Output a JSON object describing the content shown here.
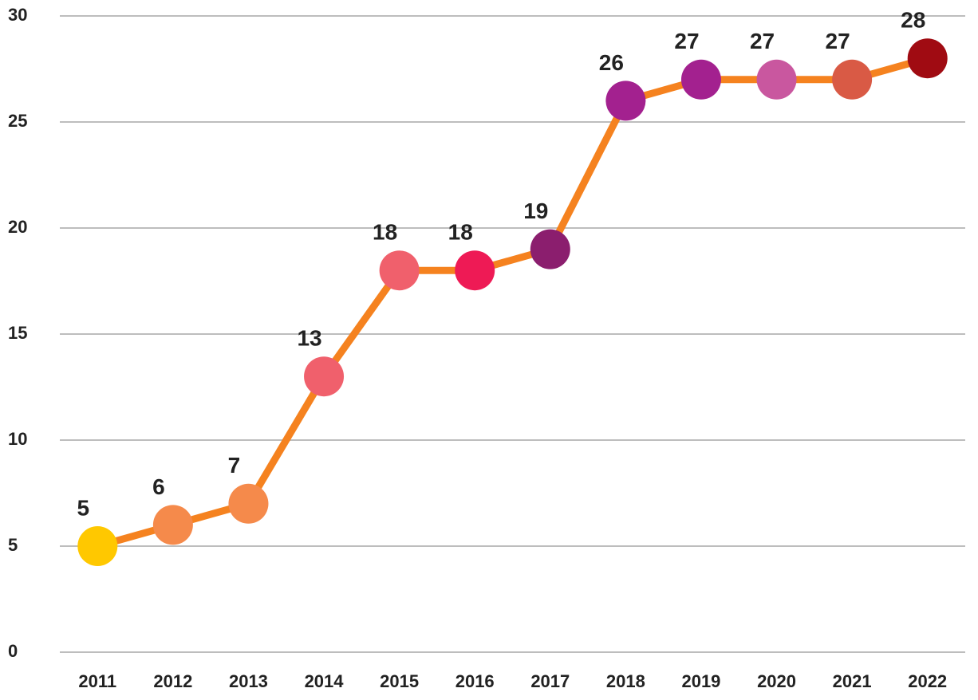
{
  "chart_data": {
    "type": "line",
    "categories": [
      "2011",
      "2012",
      "2013",
      "2014",
      "2015",
      "2016",
      "2017",
      "2018",
      "2019",
      "2020",
      "2021",
      "2022"
    ],
    "values": [
      5,
      6,
      7,
      13,
      18,
      18,
      19,
      26,
      27,
      27,
      27,
      28
    ],
    "line_color": "#f5821f",
    "colors": [
      "#ffc800",
      "#f58a4b",
      "#f58a4b",
      "#f0606c",
      "#f0606c",
      "#ee1a55",
      "#8b1e6e",
      "#a3218f",
      "#a3218f",
      "#c9579f",
      "#d95a45",
      "#a00b12"
    ],
    "ylim": [
      0,
      30
    ],
    "yticks": [
      0,
      5,
      10,
      15,
      20,
      25,
      30
    ],
    "grid": true
  }
}
